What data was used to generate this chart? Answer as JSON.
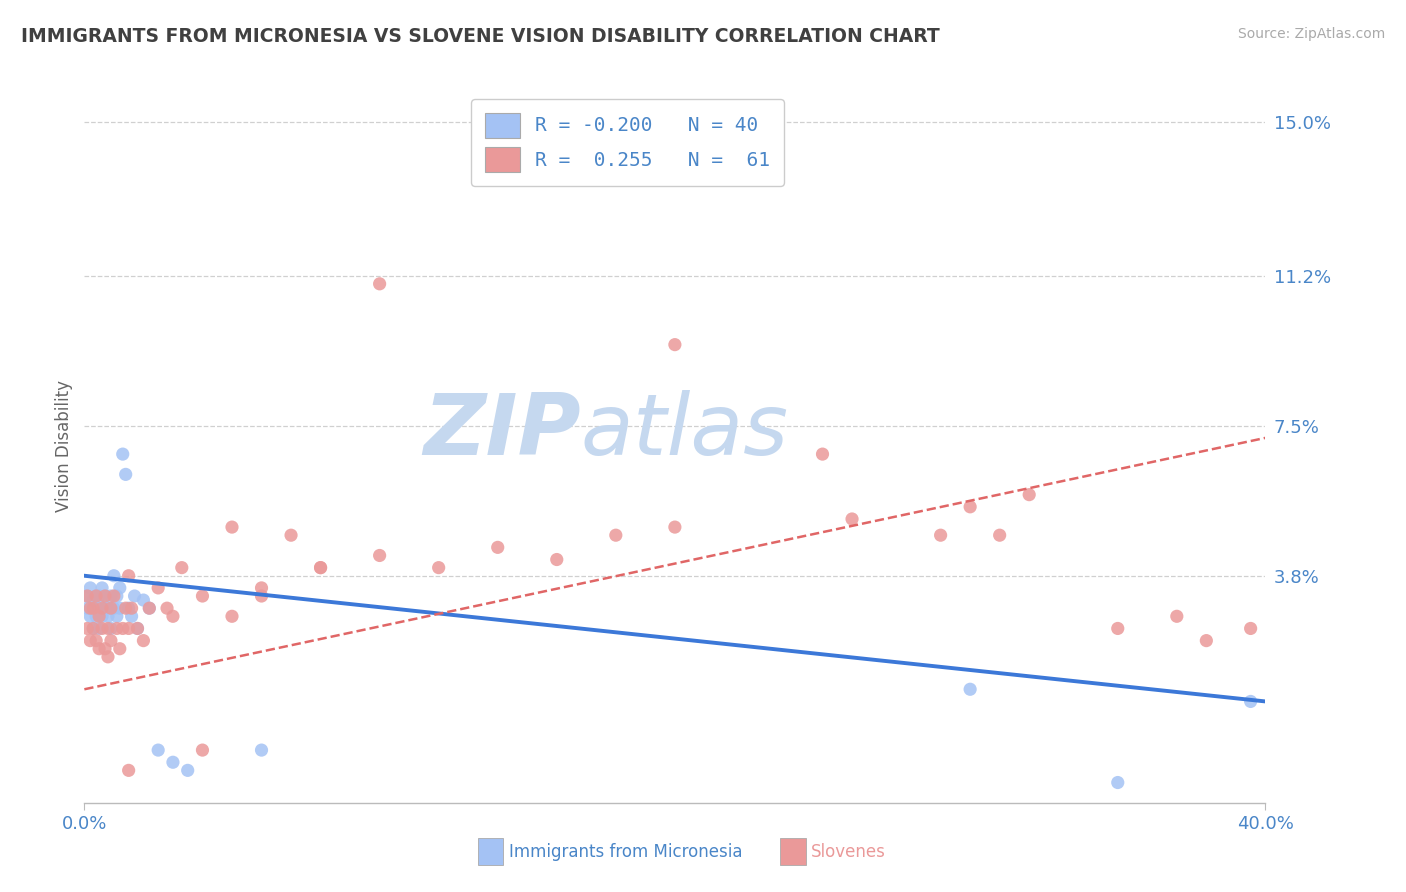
{
  "title": "IMMIGRANTS FROM MICRONESIA VS SLOVENE VISION DISABILITY CORRELATION CHART",
  "source": "Source: ZipAtlas.com",
  "ylabel": "Vision Disability",
  "xmin": 0.0,
  "xmax": 0.4,
  "ymin": -0.018,
  "ymax": 0.158,
  "legend_R1": "-0.200",
  "legend_N1": "40",
  "legend_R2": "0.255",
  "legend_N2": "61",
  "blue_color": "#a4c2f4",
  "pink_color": "#ea9999",
  "blue_line_color": "#3c78d8",
  "pink_line_color": "#e06666",
  "axis_label_color": "#4a86c8",
  "title_color": "#404040",
  "watermark_color": "#d6e4f7",
  "grid_color": "#d0d0d0",
  "ytick_vals": [
    0.038,
    0.075,
    0.112,
    0.15
  ],
  "ytick_labels": [
    "3.8%",
    "7.5%",
    "11.2%",
    "15.0%"
  ],
  "xtick_vals": [
    0.0,
    0.4
  ],
  "xtick_labels": [
    "0.0%",
    "40.0%"
  ],
  "blue_trend_x": [
    0.0,
    0.4
  ],
  "blue_trend_y": [
    0.038,
    0.007
  ],
  "pink_trend_x": [
    0.0,
    0.4
  ],
  "pink_trend_y": [
    0.01,
    0.072
  ],
  "blue_x": [
    0.001,
    0.001,
    0.002,
    0.002,
    0.003,
    0.003,
    0.004,
    0.004,
    0.005,
    0.005,
    0.005,
    0.006,
    0.006,
    0.007,
    0.007,
    0.008,
    0.008,
    0.009,
    0.009,
    0.01,
    0.01,
    0.011,
    0.011,
    0.012,
    0.012,
    0.013,
    0.014,
    0.015,
    0.016,
    0.017,
    0.018,
    0.02,
    0.022,
    0.025,
    0.03,
    0.035,
    0.06,
    0.3,
    0.35,
    0.395
  ],
  "blue_y": [
    0.03,
    0.033,
    0.028,
    0.035,
    0.025,
    0.032,
    0.028,
    0.033,
    0.03,
    0.025,
    0.033,
    0.028,
    0.035,
    0.03,
    0.033,
    0.028,
    0.03,
    0.025,
    0.033,
    0.03,
    0.038,
    0.028,
    0.033,
    0.03,
    0.035,
    0.068,
    0.063,
    0.03,
    0.028,
    0.033,
    0.025,
    0.032,
    0.03,
    -0.005,
    -0.008,
    -0.01,
    -0.005,
    0.01,
    -0.013,
    0.007
  ],
  "pink_x": [
    0.001,
    0.001,
    0.002,
    0.002,
    0.003,
    0.003,
    0.004,
    0.004,
    0.005,
    0.005,
    0.006,
    0.006,
    0.007,
    0.007,
    0.008,
    0.008,
    0.009,
    0.009,
    0.01,
    0.011,
    0.012,
    0.013,
    0.014,
    0.015,
    0.016,
    0.018,
    0.02,
    0.022,
    0.025,
    0.028,
    0.03,
    0.033,
    0.04,
    0.05,
    0.06,
    0.08,
    0.1,
    0.12,
    0.14,
    0.16,
    0.18,
    0.2,
    0.26,
    0.29,
    0.3,
    0.31,
    0.32,
    0.35,
    0.37,
    0.38,
    0.395,
    0.1,
    0.2,
    0.25,
    0.04,
    0.015,
    0.015,
    0.05,
    0.06,
    0.07,
    0.08
  ],
  "pink_y": [
    0.025,
    0.033,
    0.03,
    0.022,
    0.025,
    0.03,
    0.022,
    0.033,
    0.028,
    0.02,
    0.025,
    0.03,
    0.033,
    0.02,
    0.025,
    0.018,
    0.022,
    0.03,
    0.033,
    0.025,
    0.02,
    0.025,
    0.03,
    0.025,
    0.03,
    0.025,
    0.022,
    0.03,
    0.035,
    0.03,
    0.028,
    0.04,
    0.033,
    0.028,
    0.035,
    0.04,
    0.043,
    0.04,
    0.045,
    0.042,
    0.048,
    0.05,
    0.052,
    0.048,
    0.055,
    0.048,
    0.058,
    0.025,
    0.028,
    0.022,
    0.025,
    0.11,
    0.095,
    0.068,
    -0.005,
    -0.01,
    0.038,
    0.05,
    0.033,
    0.048,
    0.04
  ]
}
